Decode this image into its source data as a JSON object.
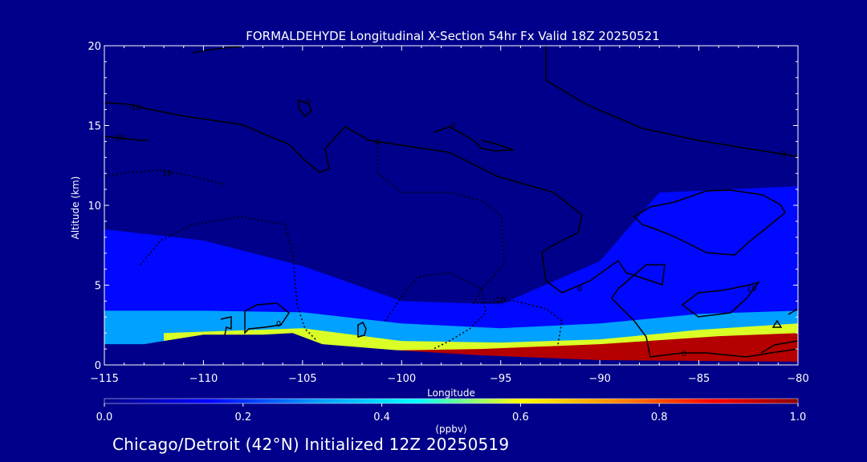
{
  "chart_data": {
    "type": "heatmap",
    "title": "FORMALDEHYDE Longitudinal X-Section 54hr  Fx Valid 18Z 20250521",
    "xlabel": "Longitude",
    "ylabel": "Altitude (km)",
    "xlim": [
      -115,
      -80
    ],
    "ylim": [
      0,
      20
    ],
    "x_ticks": [
      -115,
      -110,
      -105,
      -100,
      -95,
      -90,
      -85,
      -80
    ],
    "x_tick_labels": [
      "−115",
      "−110",
      "−105",
      "−100",
      "−95",
      "−90",
      "−85",
      "−80"
    ],
    "y_ticks": [
      0,
      5,
      10,
      15,
      20
    ],
    "y_tick_labels": [
      "0",
      "5",
      "10",
      "15",
      "20"
    ],
    "colorbar": {
      "label": "(ppbv)",
      "min": 0.0,
      "max": 1.0,
      "ticks": [
        0.0,
        0.2,
        0.4,
        0.6,
        0.8,
        1.0
      ],
      "tick_labels": [
        "0.0",
        "0.2",
        "0.4",
        "0.6",
        "0.8",
        "1.0"
      ],
      "colormap": [
        "#00008a",
        "#0000ff",
        "#0096ff",
        "#00ffff",
        "#ffff00",
        "#ff8000",
        "#ff0000",
        "#8b0000"
      ]
    },
    "terrain_km": [
      [
        -115,
        1.3
      ],
      [
        -113,
        1.3
      ],
      [
        -112,
        1.5
      ],
      [
        -110,
        1.9
      ],
      [
        -107,
        1.9
      ],
      [
        -105.5,
        2.0
      ],
      [
        -104,
        1.3
      ],
      [
        -100,
        0.9
      ],
      [
        -96,
        0.6
      ],
      [
        -90,
        0.3
      ],
      [
        -80,
        0.2
      ]
    ],
    "concentration_layers": [
      {
        "level_ppbv": 0.15,
        "top_km": [
          [
            -115,
            8.5
          ],
          [
            -110,
            7.8
          ],
          [
            -105,
            6.2
          ],
          [
            -100,
            4.0
          ],
          [
            -95,
            3.8
          ],
          [
            -90,
            6.5
          ],
          [
            -87,
            10.8
          ],
          [
            -80,
            11.2
          ]
        ]
      },
      {
        "level_ppbv": 0.3,
        "top_km": [
          [
            -115,
            3.4
          ],
          [
            -110,
            3.4
          ],
          [
            -105,
            3.3
          ],
          [
            -100,
            2.6
          ],
          [
            -95,
            2.3
          ],
          [
            -90,
            2.6
          ],
          [
            -85,
            3.2
          ],
          [
            -80,
            3.4
          ]
        ]
      },
      {
        "level_ppbv": 0.55,
        "top_km": [
          [
            -112,
            2.0
          ],
          [
            -105,
            2.3
          ],
          [
            -100,
            1.5
          ],
          [
            -95,
            1.4
          ],
          [
            -90,
            1.6
          ],
          [
            -85,
            2.2
          ],
          [
            -80,
            2.6
          ]
        ]
      },
      {
        "level_ppbv": 0.95,
        "top_km": [
          [
            -101,
            0.9
          ],
          [
            -96,
            1.0
          ],
          [
            -90,
            1.3
          ],
          [
            -84,
            1.8
          ],
          [
            -80,
            2.0
          ]
        ]
      }
    ],
    "contour_labels": [
      "0",
      "-10",
      "10",
      "-10",
      "0",
      "0",
      "-10",
      "0",
      "0",
      "0",
      "10",
      "0",
      "0"
    ]
  },
  "footer_text": "Chicago/Detroit (42°N) Initialized 12Z 20250519"
}
